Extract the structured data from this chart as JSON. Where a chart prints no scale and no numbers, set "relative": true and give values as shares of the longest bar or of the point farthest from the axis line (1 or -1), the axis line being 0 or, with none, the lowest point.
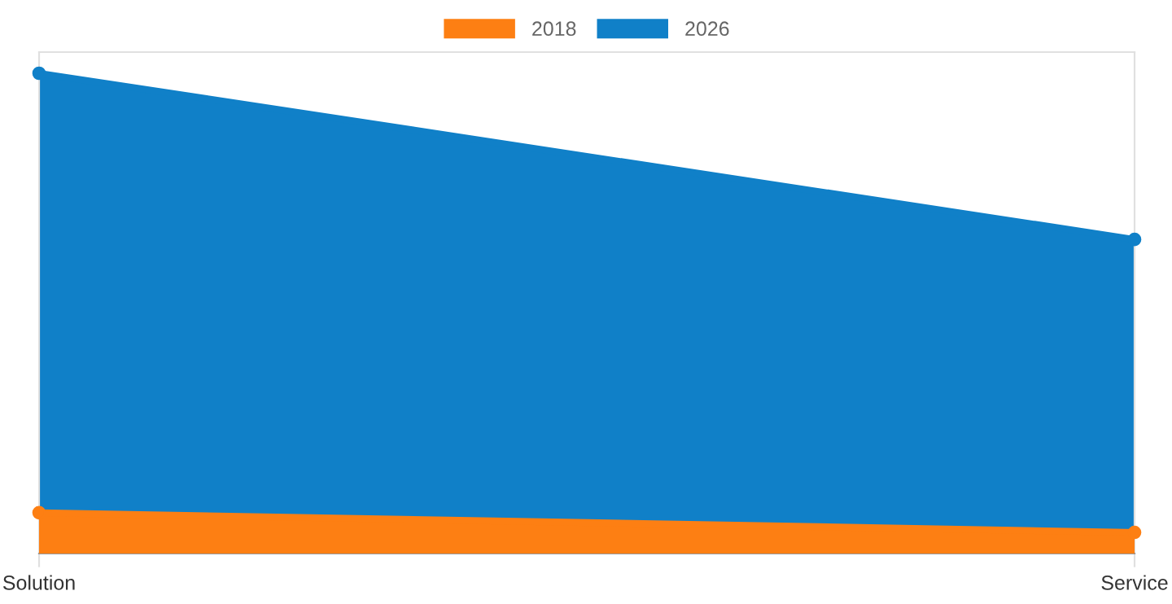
{
  "chart_data": {
    "type": "area",
    "relative": true,
    "categories": [
      "Solution",
      "Service"
    ],
    "series": [
      {
        "name": "2026",
        "color": "#1080c8",
        "values": [
          1,
          0.654
        ]
      },
      {
        "name": "2018",
        "color": "#fd7f13",
        "values": [
          0.085,
          0.044
        ]
      }
    ],
    "legend": "top",
    "marker": "circle",
    "tick_labels": "x"
  }
}
